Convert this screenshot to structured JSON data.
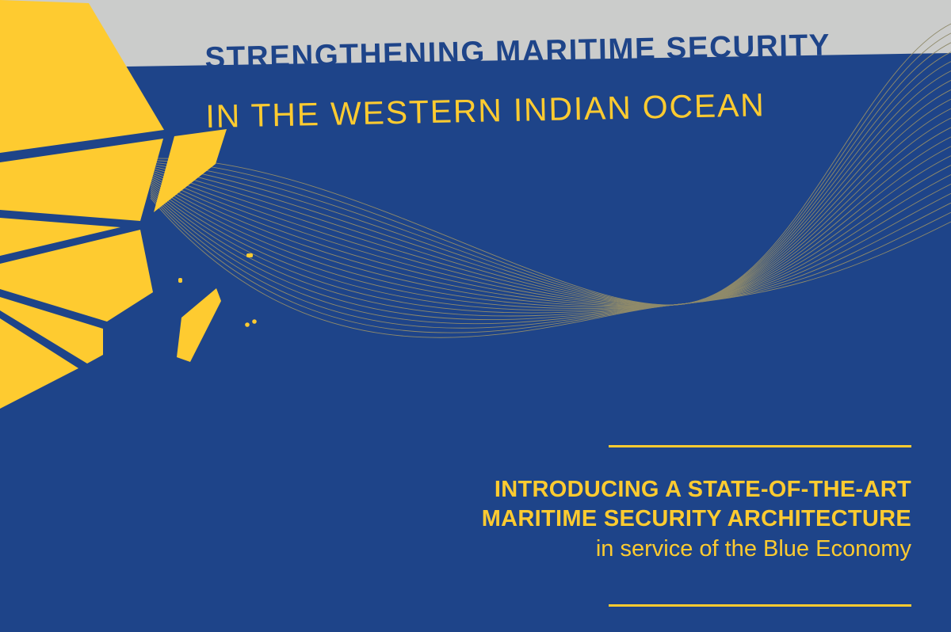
{
  "colors": {
    "background": "#1e4489",
    "accent": "#fecb30",
    "band": "#cbcccb",
    "wave": "#8f8a6a"
  },
  "header": {
    "title": "STRENGTHENING MARITIME SECURITY",
    "subtitle": "IN THE WESTERN INDIAN OCEAN"
  },
  "tagline": {
    "line1": "INTRODUCING A STATE-OF-THE-ART",
    "line2": "MARITIME SECURITY ARCHITECTURE",
    "line3": "in service of the Blue Economy"
  }
}
